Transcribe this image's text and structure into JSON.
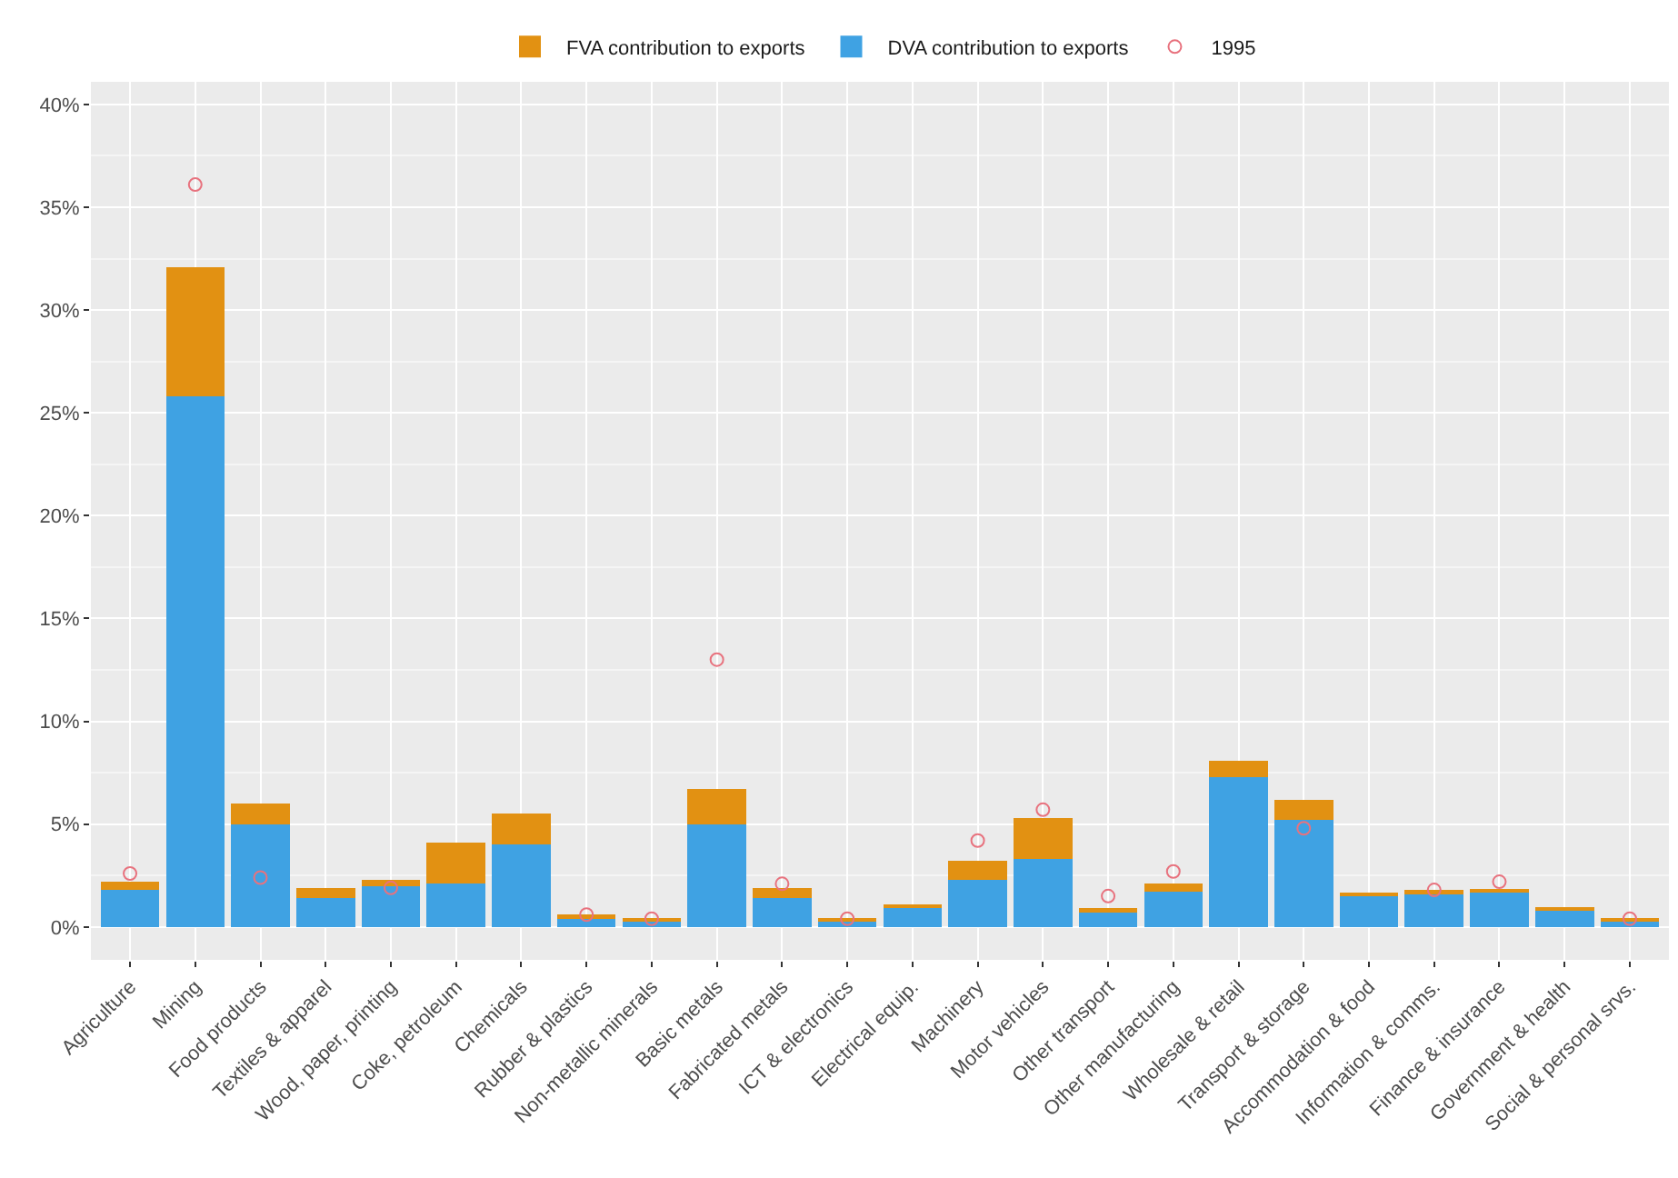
{
  "chart_data": {
    "type": "bar",
    "stacked": true,
    "categories": [
      "Agriculture",
      "Mining",
      "Food products",
      "Textiles & apparel",
      "Wood, paper, printing",
      "Coke, petroleum",
      "Chemicals",
      "Rubber & plastics",
      "Non-metallic minerals",
      "Basic metals",
      "Fabricated metals",
      "ICT & electronics",
      "Electrical equip.",
      "Machinery",
      "Motor vehicles",
      "Other transport",
      "Other manufacturing",
      "Wholesale & retail",
      "Transport & storage",
      "Accommodation & food",
      "Information & comms.",
      "Finance & insurance",
      "Government & health",
      "Social & personal srvs."
    ],
    "series": [
      {
        "name": "DVA contribution to exports",
        "color": "#3fa2e3",
        "values": [
          1.8,
          25.8,
          5.0,
          1.4,
          2.0,
          2.1,
          4.0,
          0.4,
          0.3,
          5.0,
          1.4,
          0.3,
          0.9,
          2.3,
          3.3,
          0.7,
          1.7,
          7.3,
          5.2,
          1.5,
          1.6,
          1.7,
          0.8,
          0.3
        ]
      },
      {
        "name": "FVA contribution to exports",
        "color": "#e29112",
        "values": [
          0.4,
          6.3,
          1.0,
          0.5,
          0.3,
          2.0,
          1.5,
          0.2,
          0.1,
          1.7,
          0.5,
          0.1,
          0.2,
          0.9,
          2.0,
          0.2,
          0.4,
          0.8,
          1.0,
          0.1,
          0.2,
          0.1,
          0.1,
          0.1
        ]
      },
      {
        "name": "1995",
        "type": "scatter",
        "marker": "circle",
        "color": "#e8727e",
        "x": [
          "Agriculture",
          "Mining",
          "Food products",
          "Wood, paper, printing",
          "Rubber & plastics",
          "Non-metallic minerals",
          "Basic metals",
          "Fabricated metals",
          "ICT & electronics",
          "Machinery",
          "Motor vehicles",
          "Other transport",
          "Other manufacturing",
          "Transport & storage",
          "Information & comms.",
          "Finance & insurance",
          "Social & personal srvs."
        ],
        "values": [
          2.6,
          36.1,
          2.4,
          1.9,
          0.6,
          0.4,
          13.0,
          2.1,
          0.4,
          4.2,
          5.7,
          1.5,
          2.7,
          4.8,
          1.8,
          2.2,
          0.4
        ]
      }
    ],
    "ylim": [
      -1.6,
      41.1
    ],
    "yticks": [
      {
        "value": 0,
        "label": "0%"
      },
      {
        "value": 5,
        "label": "5%"
      },
      {
        "value": 10,
        "label": "10%"
      },
      {
        "value": 15,
        "label": "15%"
      },
      {
        "value": 20,
        "label": "20%"
      },
      {
        "value": 25,
        "label": "25%"
      },
      {
        "value": 30,
        "label": "30%"
      },
      {
        "value": 35,
        "label": "35%"
      },
      {
        "value": 40,
        "label": "40%"
      }
    ],
    "grid": true,
    "legend": "top"
  }
}
